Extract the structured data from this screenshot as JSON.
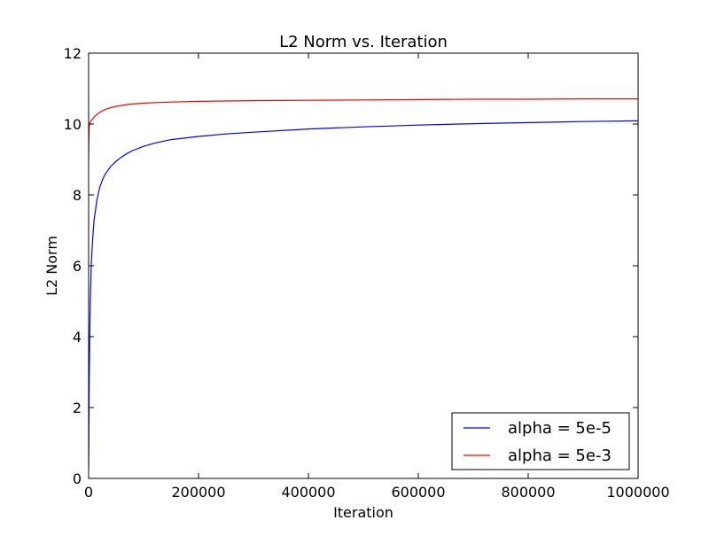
{
  "chart_data": {
    "type": "line",
    "title": "L2 Norm vs. Iteration",
    "xlabel": "Iteration",
    "ylabel": "L2 Norm",
    "xlim": [
      0,
      1000000
    ],
    "ylim": [
      0,
      12
    ],
    "xticks": [
      0,
      200000,
      400000,
      600000,
      800000,
      1000000
    ],
    "xtick_labels": [
      "0",
      "200000",
      "400000",
      "600000",
      "800000",
      "1000000"
    ],
    "yticks": [
      0,
      2,
      4,
      6,
      8,
      10,
      12
    ],
    "ytick_labels": [
      "0",
      "2",
      "4",
      "6",
      "8",
      "10",
      "12"
    ],
    "grid": false,
    "legend_position": "lower-right",
    "series": [
      {
        "name": "alpha = 5e-5",
        "color": "#0000ff",
        "x": [
          0,
          500,
          1000,
          2000,
          3000,
          5000,
          7500,
          10000,
          15000,
          20000,
          25000,
          30000,
          40000,
          50000,
          60000,
          70000,
          80000,
          100000,
          120000,
          150000,
          200000,
          250000,
          300000,
          400000,
          500000,
          600000,
          700000,
          800000,
          900000,
          1000000
        ],
        "y": [
          0.3,
          1.5,
          2.6,
          4.0,
          5.0,
          6.1,
          6.8,
          7.3,
          7.85,
          8.2,
          8.42,
          8.58,
          8.8,
          8.95,
          9.07,
          9.17,
          9.25,
          9.37,
          9.46,
          9.56,
          9.65,
          9.72,
          9.77,
          9.86,
          9.92,
          9.97,
          10.01,
          10.04,
          10.07,
          10.09
        ]
      },
      {
        "name": "alpha = 5e-3",
        "color": "#ff0000",
        "x": [
          0,
          200,
          500,
          1000,
          2000,
          3000,
          5000,
          7500,
          10000,
          15000,
          20000,
          30000,
          40000,
          50000,
          70000,
          100000,
          150000,
          200000,
          300000,
          400000,
          500000,
          600000,
          700000,
          800000,
          900000,
          1000000
        ],
        "y": [
          9.0,
          9.4,
          9.7,
          9.92,
          10.02,
          10.06,
          10.1,
          10.15,
          10.2,
          10.27,
          10.33,
          10.41,
          10.46,
          10.5,
          10.55,
          10.59,
          10.62,
          10.64,
          10.66,
          10.67,
          10.68,
          10.69,
          10.7,
          10.7,
          10.71,
          10.71
        ]
      }
    ]
  }
}
